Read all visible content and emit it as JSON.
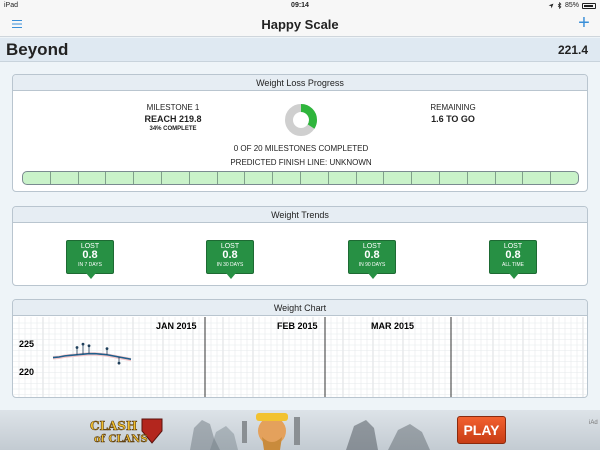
{
  "status": {
    "device": "iPad",
    "time": "09:14",
    "battery": "85%",
    "battery_fraction": 0.85
  },
  "nav": {
    "title": "Happy Scale",
    "menu_icon": "hamburger-icon",
    "add_icon": "plus-icon"
  },
  "header": {
    "name": "Beyond",
    "weight": "221.4"
  },
  "progress": {
    "title": "Weight Loss Progress",
    "milestone_label": "MILESTONE 1",
    "milestone_target": "REACH 219.8",
    "milestone_complete": "34% COMPLETE",
    "milestone_fraction": 0.34,
    "remaining_label": "REMAINING",
    "remaining_value": "1.6 TO GO",
    "milestones_completed": "0 OF 20 MILESTONES COMPLETED",
    "milestone_total": 20,
    "predicted": "PREDICTED FINISH LINE: UNKNOWN"
  },
  "trends": {
    "title": "Weight Trends",
    "items": [
      {
        "label": "LOST",
        "value": "0.8",
        "period": "IN 7 DAYS"
      },
      {
        "label": "LOST",
        "value": "0.8",
        "period": "IN 30 DAYS"
      },
      {
        "label": "LOST",
        "value": "0.8",
        "period": "IN 90 DAYS"
      },
      {
        "label": "LOST",
        "value": "0.8",
        "period": "ALL TIME"
      }
    ]
  },
  "chart": {
    "title": "Weight Chart",
    "month_labels": [
      "JAN 2015",
      "FEB 2015",
      "MAR 2015"
    ],
    "y_labels": [
      "225",
      "220"
    ]
  },
  "chart_data": {
    "type": "line",
    "title": "Weight Chart",
    "xlabel": "",
    "ylabel": "",
    "ylim": [
      217,
      228
    ],
    "x": [
      0,
      1,
      2,
      3,
      4,
      5,
      6,
      7,
      8,
      9,
      10,
      11,
      12,
      13
    ],
    "series": [
      {
        "values": [
          222.4,
          222.5,
          222.7,
          222.8,
          222.9,
          223.0,
          223.1,
          223.1,
          223.0,
          222.9,
          222.7,
          222.5,
          222.3,
          222.1
        ]
      }
    ],
    "weigh_ins": [
      {
        "x": 4,
        "y": 224.2
      },
      {
        "x": 5,
        "y": 224.8
      },
      {
        "x": 6,
        "y": 224.5
      },
      {
        "x": 9,
        "y": 224.0
      },
      {
        "x": 11,
        "y": 221.4
      }
    ],
    "grid": true
  },
  "ad": {
    "brand": "CLASH OF CLANS",
    "play_label": "PLAY",
    "info_label": "iAd"
  }
}
